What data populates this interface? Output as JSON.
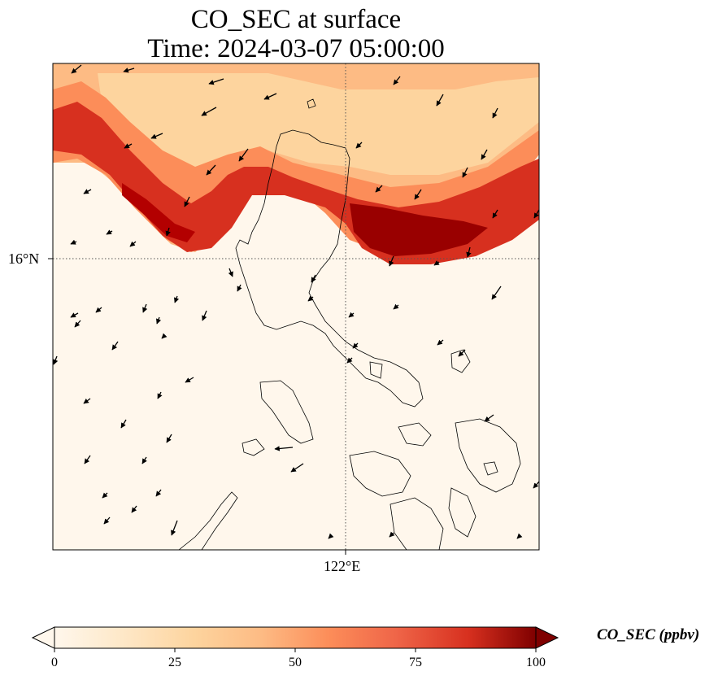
{
  "title": {
    "line1": "CO_SEC at surface",
    "line2": "Time: 2024-03-07 05:00:00"
  },
  "map": {
    "lat_tick_label": "16°N",
    "lon_tick_label": "122°E",
    "gridlines": "dotted",
    "field_variable": "CO_SEC",
    "overlay": "wind vectors (black arrows) and coastlines"
  },
  "colorbar": {
    "label": "CO_SEC (ppbv)",
    "colormap": "OrRd",
    "range": [
      0,
      100
    ],
    "ticks": [
      "0",
      "25",
      "50",
      "75",
      "100"
    ],
    "extend": "both"
  },
  "colors": {
    "low": "#fff7ec",
    "mid_low": "#fdd49e",
    "mid": "#fc8d59",
    "high": "#d7301f",
    "max": "#7f0000"
  }
}
